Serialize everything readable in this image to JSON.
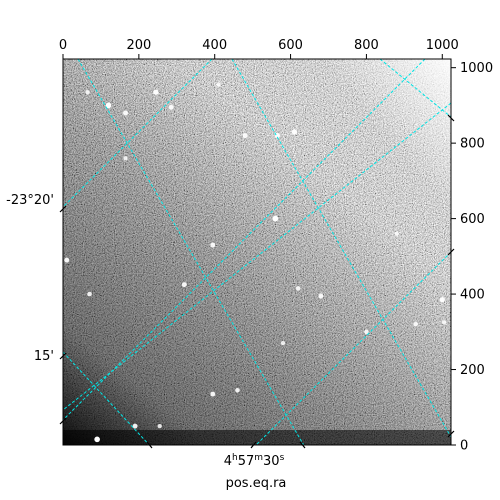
{
  "chart_data": {
    "type": "image",
    "pixel_axes": {
      "xlim": [
        0,
        1023
      ],
      "ylim": [
        0,
        1023
      ],
      "x_ticks": [
        0,
        200,
        400,
        600,
        800,
        1000
      ],
      "y_ticks": [
        0,
        200,
        400,
        600,
        800,
        1000
      ],
      "x_tick_labels": [
        "0",
        "200",
        "400",
        "600",
        "800",
        "1000"
      ],
      "y_tick_labels": [
        "0",
        "200",
        "400",
        "600",
        "800",
        "1000"
      ],
      "x_tick_labels_position": "top",
      "y_tick_labels_position": "right"
    },
    "world_axes": {
      "xlabel": "pos.eq.ra",
      "ra_tick_labels": [
        {
          "text_h": "4",
          "text_m": "57",
          "text_s": "30",
          "full": "4h57m30s"
        }
      ],
      "dec_tick_labels": [
        {
          "text": "-23°20'"
        },
        {
          "text": "15'"
        }
      ]
    },
    "grid": true,
    "grid_color": "#00e5e5",
    "colormap": "gray",
    "sources": [
      {
        "x": 120,
        "y": 900,
        "b": 1
      },
      {
        "x": 165,
        "y": 880,
        "b": 0.8
      },
      {
        "x": 245,
        "y": 935,
        "b": 0.9
      },
      {
        "x": 285,
        "y": 895,
        "b": 0.8
      },
      {
        "x": 480,
        "y": 820,
        "b": 0.8
      },
      {
        "x": 565,
        "y": 820,
        "b": 0.9
      },
      {
        "x": 610,
        "y": 830,
        "b": 0.9
      },
      {
        "x": 560,
        "y": 600,
        "b": 1
      },
      {
        "x": 395,
        "y": 530,
        "b": 0.8
      },
      {
        "x": 320,
        "y": 425,
        "b": 0.8
      },
      {
        "x": 620,
        "y": 415,
        "b": 0.7
      },
      {
        "x": 680,
        "y": 395,
        "b": 0.8
      },
      {
        "x": 1000,
        "y": 385,
        "b": 0.9
      },
      {
        "x": 930,
        "y": 320,
        "b": 0.7
      },
      {
        "x": 800,
        "y": 300,
        "b": 0.7
      },
      {
        "x": 580,
        "y": 270,
        "b": 0.6
      },
      {
        "x": 395,
        "y": 135,
        "b": 0.8
      },
      {
        "x": 460,
        "y": 145,
        "b": 0.7
      },
      {
        "x": 190,
        "y": 50,
        "b": 0.8
      },
      {
        "x": 10,
        "y": 490,
        "b": 0.8
      },
      {
        "x": 70,
        "y": 400,
        "b": 0.7
      },
      {
        "x": 90,
        "y": 15,
        "b": 1
      },
      {
        "x": 255,
        "y": 50,
        "b": 0.6
      },
      {
        "x": 880,
        "y": 560,
        "b": 0.6
      },
      {
        "x": 1005,
        "y": 325,
        "b": 0.6
      },
      {
        "x": 165,
        "y": 760,
        "b": 0.6
      },
      {
        "x": 65,
        "y": 935,
        "b": 0.6
      },
      {
        "x": 410,
        "y": 955,
        "b": 0.6
      }
    ]
  }
}
